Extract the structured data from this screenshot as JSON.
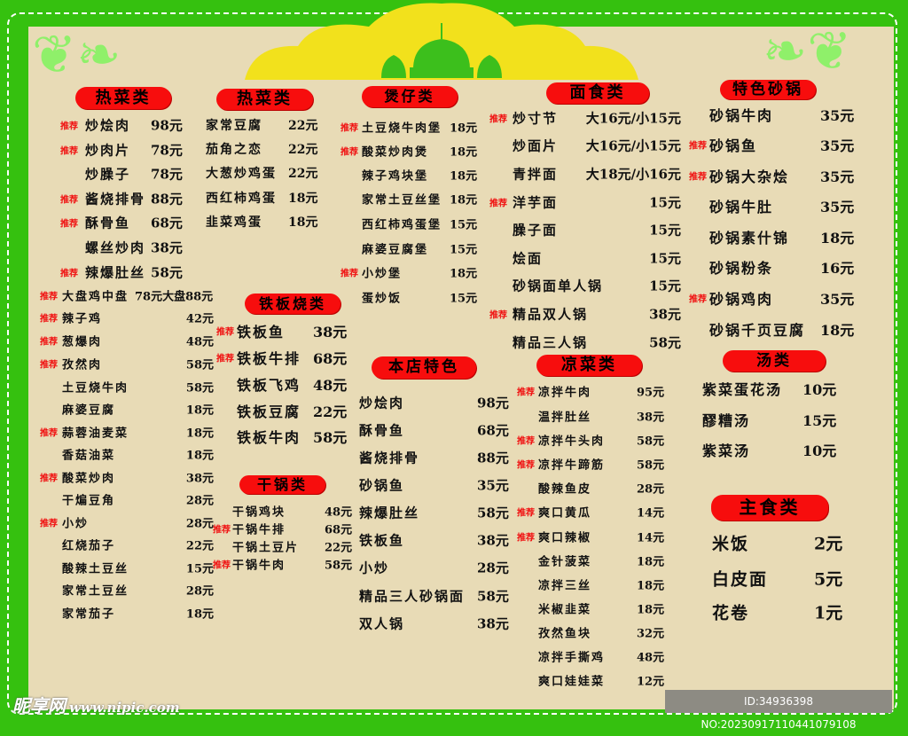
{
  "recommend_label": "推荐",
  "sections": [
    {
      "title": "热菜类",
      "items": [
        {
          "name": "炒烩肉",
          "price": "98元",
          "rec": true
        },
        {
          "name": "炒肉片",
          "price": "78元",
          "rec": true
        },
        {
          "name": "炒臊子",
          "price": "78元",
          "rec": false
        },
        {
          "name": "酱烧排骨",
          "price": "88元",
          "rec": true
        },
        {
          "name": "酥骨鱼",
          "price": "68元",
          "rec": true
        },
        {
          "name": "螺丝炒肉",
          "price": "38元",
          "rec": false
        },
        {
          "name": "辣爆肚丝",
          "price": "58元",
          "rec": true
        }
      ]
    },
    {
      "title": "",
      "items": [
        {
          "name": "大盘鸡中盘",
          "price": "78元大盘88元",
          "rec": true
        },
        {
          "name": "辣子鸡",
          "price": "42元",
          "rec": true
        },
        {
          "name": "葱爆肉",
          "price": "48元",
          "rec": true
        },
        {
          "name": "孜然肉",
          "price": "58元",
          "rec": true
        },
        {
          "name": "土豆烧牛肉",
          "price": "58元",
          "rec": false
        },
        {
          "name": "麻婆豆腐",
          "price": "18元",
          "rec": false
        },
        {
          "name": "蒜蓉油麦菜",
          "price": "18元",
          "rec": true
        },
        {
          "name": "香菇油菜",
          "price": "18元",
          "rec": false
        },
        {
          "name": "酸菜炒肉",
          "price": "38元",
          "rec": true
        },
        {
          "name": "干煸豆角",
          "price": "28元",
          "rec": false
        },
        {
          "name": "小炒",
          "price": "28元",
          "rec": true
        },
        {
          "name": "红烧茄子",
          "price": "22元",
          "rec": false
        },
        {
          "name": "酸辣土豆丝",
          "price": "15元",
          "rec": false
        },
        {
          "name": "家常土豆丝",
          "price": "28元",
          "rec": false
        },
        {
          "name": "家常茄子",
          "price": "18元",
          "rec": false
        }
      ]
    },
    {
      "title": "热菜类",
      "items": [
        {
          "name": "家常豆腐",
          "price": "22元",
          "rec": false
        },
        {
          "name": "茄角之恋",
          "price": "22元",
          "rec": false
        },
        {
          "name": "大葱炒鸡蛋",
          "price": "22元",
          "rec": false
        },
        {
          "name": "西红柿鸡蛋",
          "price": "18元",
          "rec": false
        },
        {
          "name": "韭菜鸡蛋",
          "price": "18元",
          "rec": false
        }
      ]
    },
    {
      "title": "铁板烧类",
      "items": [
        {
          "name": "铁板鱼",
          "price": "38元",
          "rec": true
        },
        {
          "name": "铁板牛排",
          "price": "68元",
          "rec": true
        },
        {
          "name": "铁板飞鸡",
          "price": "48元",
          "rec": false
        },
        {
          "name": "铁板豆腐",
          "price": "22元",
          "rec": false
        },
        {
          "name": "铁板牛肉",
          "price": "58元",
          "rec": false
        }
      ]
    },
    {
      "title": "干锅类",
      "items": [
        {
          "name": "干锅鸡块",
          "price": "48元",
          "rec": false
        },
        {
          "name": "干锅牛排",
          "price": "68元",
          "rec": true
        },
        {
          "name": "干锅土豆片",
          "price": "22元",
          "rec": false
        },
        {
          "name": "干锅牛肉",
          "price": "58元",
          "rec": true
        }
      ]
    },
    {
      "title": "煲仔类",
      "items": [
        {
          "name": "土豆烧牛肉堡",
          "price": "18元",
          "rec": true
        },
        {
          "name": "酸菜炒肉煲",
          "price": "18元",
          "rec": true
        },
        {
          "name": "辣子鸡块堡",
          "price": "18元",
          "rec": false
        },
        {
          "name": "家常土豆丝堡",
          "price": "18元",
          "rec": false
        },
        {
          "name": "西红柿鸡蛋堡",
          "price": "15元",
          "rec": false
        },
        {
          "name": "麻婆豆腐堡",
          "price": "15元",
          "rec": false
        },
        {
          "name": "小炒堡",
          "price": "18元",
          "rec": true
        },
        {
          "name": "蛋炒饭",
          "price": "15元",
          "rec": false
        }
      ]
    },
    {
      "title": "本店特色",
      "items": [
        {
          "name": "炒烩肉",
          "price": "98元",
          "rec": false
        },
        {
          "name": "酥骨鱼",
          "price": "68元",
          "rec": false
        },
        {
          "name": "酱烧排骨",
          "price": "88元",
          "rec": false
        },
        {
          "name": "砂锅鱼",
          "price": "35元",
          "rec": false
        },
        {
          "name": "辣爆肚丝",
          "price": "58元",
          "rec": false
        },
        {
          "name": "铁板鱼",
          "price": "38元",
          "rec": false
        },
        {
          "name": "小炒",
          "price": "28元",
          "rec": false
        },
        {
          "name": "精品三人砂锅面",
          "price": "58元",
          "rec": false
        },
        {
          "name": "双人锅",
          "price": "38元",
          "rec": false
        }
      ]
    },
    {
      "title": "面食类",
      "items": [
        {
          "name": "炒寸节",
          "price": "大16元/小15元",
          "rec": true
        },
        {
          "name": "炒面片",
          "price": "大16元/小15元",
          "rec": false
        },
        {
          "name": "青拌面",
          "price": "大18元/小16元",
          "rec": false
        },
        {
          "name": "洋芋面",
          "price": "15元",
          "rec": true
        },
        {
          "name": "臊子面",
          "price": "15元",
          "rec": false
        },
        {
          "name": "烩面",
          "price": "15元",
          "rec": false
        },
        {
          "name": "砂锅面单人锅",
          "price": "15元",
          "rec": false
        },
        {
          "name": "精品双人锅",
          "price": "38元",
          "rec": true
        },
        {
          "name": "精品三人锅",
          "price": "58元",
          "rec": false
        }
      ]
    },
    {
      "title": "凉菜类",
      "items": [
        {
          "name": "凉拌牛肉",
          "price": "95元",
          "rec": true
        },
        {
          "name": "温拌肚丝",
          "price": "38元",
          "rec": false
        },
        {
          "name": "凉拌牛头肉",
          "price": "58元",
          "rec": true
        },
        {
          "name": "凉拌牛蹄筋",
          "price": "58元",
          "rec": true
        },
        {
          "name": "酸辣鱼皮",
          "price": "28元",
          "rec": false
        },
        {
          "name": "爽口黄瓜",
          "price": "14元",
          "rec": true
        },
        {
          "name": "爽口辣椒",
          "price": "14元",
          "rec": true
        },
        {
          "name": "金针菠菜",
          "price": "18元",
          "rec": false
        },
        {
          "name": "凉拌三丝",
          "price": "18元",
          "rec": false
        },
        {
          "name": "米椒韭菜",
          "price": "18元",
          "rec": false
        },
        {
          "name": "孜然鱼块",
          "price": "32元",
          "rec": false
        },
        {
          "name": "凉拌手撕鸡",
          "price": "48元",
          "rec": false
        },
        {
          "name": "爽口娃娃菜",
          "price": "12元",
          "rec": false
        }
      ]
    },
    {
      "title": "特色砂锅",
      "items": [
        {
          "name": "砂锅牛肉",
          "price": "35元",
          "rec": false
        },
        {
          "name": "砂锅鱼",
          "price": "35元",
          "rec": true
        },
        {
          "name": "砂锅大杂烩",
          "price": "35元",
          "rec": true
        },
        {
          "name": "砂锅牛肚",
          "price": "35元",
          "rec": false
        },
        {
          "name": "砂锅素什锦",
          "price": "18元",
          "rec": false
        },
        {
          "name": "砂锅粉条",
          "price": "16元",
          "rec": false
        },
        {
          "name": "砂锅鸡肉",
          "price": "35元",
          "rec": true
        },
        {
          "name": "砂锅千页豆腐",
          "price": "18元",
          "rec": false
        }
      ]
    },
    {
      "title": "汤类",
      "items": [
        {
          "name": "紫菜蛋花汤",
          "price": "10元",
          "rec": false
        },
        {
          "name": "醪糟汤",
          "price": "15元",
          "rec": false
        },
        {
          "name": "紫菜汤",
          "price": "10元",
          "rec": false
        }
      ]
    },
    {
      "title": "主食类",
      "items": [
        {
          "name": "米饭",
          "price": "2元",
          "rec": false
        },
        {
          "name": "白皮面",
          "price": "5元",
          "rec": false
        },
        {
          "name": "花卷",
          "price": "1元",
          "rec": false
        }
      ]
    }
  ],
  "watermark": {
    "logo": "昵享网",
    "url": "www.nipic.com"
  },
  "image_id": "ID:34936398 NO:20230917110441079108",
  "colors": {
    "border": "#35c10f",
    "panel": "#e8dbb6",
    "header": "#f70d0d",
    "dome": "#f2e11c",
    "mosque": "#3cbf1c",
    "recommend": "#f01010"
  }
}
